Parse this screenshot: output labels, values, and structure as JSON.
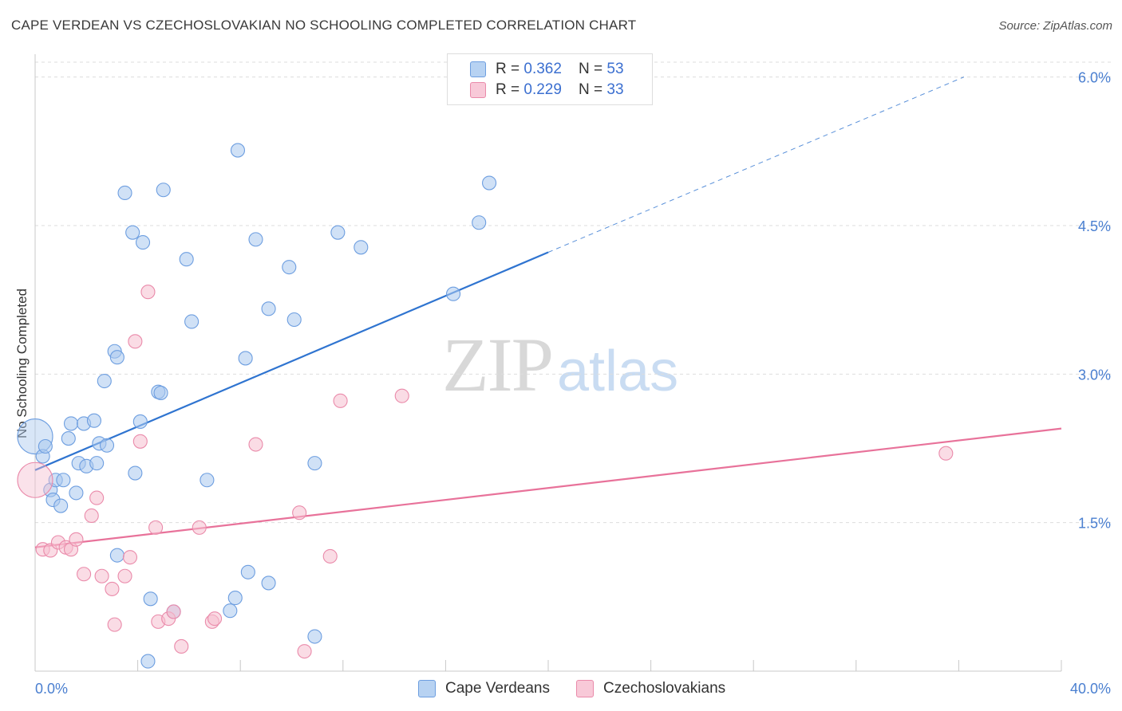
{
  "title": "CAPE VERDEAN VS CZECHOSLOVAKIAN NO SCHOOLING COMPLETED CORRELATION CHART",
  "source": "Source: ZipAtlas.com",
  "watermark": {
    "zip": "ZIP",
    "atlas": "atlas"
  },
  "legend": {
    "rows": [
      {
        "r_label": "R = ",
        "r_value": "0.362",
        "n_label": "N = ",
        "n_value": "53"
      },
      {
        "r_label": "R = ",
        "r_value": "0.229",
        "n_label": "N = ",
        "n_value": "33"
      }
    ]
  },
  "bottom_legend": [
    "Cape Verdeans",
    "Czechoslovakians"
  ],
  "colors": {
    "blue_fill": "#a9c8ee",
    "blue_stroke": "#6d9ee0",
    "blue_line": "#2f74d0",
    "pink_fill": "#f5bfd0",
    "pink_stroke": "#ea8aaa",
    "pink_line": "#e8729a",
    "tick_text": "#4a7fd0",
    "grid": "#dddddd"
  },
  "chart_data": {
    "type": "scatter",
    "title": "CAPE VERDEAN VS CZECHOSLOVAKIAN NO SCHOOLING COMPLETED CORRELATION CHART",
    "xlabel": "",
    "ylabel": "No Schooling Completed",
    "xlim": [
      0,
      40
    ],
    "ylim": [
      0,
      6.15
    ],
    "x_tick_labels": [
      "0.0%",
      "40.0%"
    ],
    "y_ticks": [
      1.5,
      3.0,
      4.5,
      6.0
    ],
    "y_tick_labels": [
      "1.5%",
      "3.0%",
      "4.5%",
      "6.0%"
    ],
    "grid": true,
    "legend_position": "top-center",
    "series": [
      {
        "name": "Cape Verdeans",
        "points": [
          {
            "x": 0.0,
            "y": 2.37,
            "big": true
          },
          {
            "x": 0.3,
            "y": 2.17
          },
          {
            "x": 0.4,
            "y": 2.27
          },
          {
            "x": 0.6,
            "y": 1.83
          },
          {
            "x": 0.7,
            "y": 1.73
          },
          {
            "x": 0.8,
            "y": 1.93
          },
          {
            "x": 1.0,
            "y": 1.67
          },
          {
            "x": 1.1,
            "y": 1.93
          },
          {
            "x": 1.3,
            "y": 2.35
          },
          {
            "x": 1.4,
            "y": 2.5
          },
          {
            "x": 1.6,
            "y": 1.8
          },
          {
            "x": 1.7,
            "y": 2.1
          },
          {
            "x": 1.9,
            "y": 2.5
          },
          {
            "x": 2.0,
            "y": 2.07
          },
          {
            "x": 2.3,
            "y": 2.53
          },
          {
            "x": 2.4,
            "y": 2.1
          },
          {
            "x": 2.5,
            "y": 2.3
          },
          {
            "x": 2.7,
            "y": 2.93
          },
          {
            "x": 2.8,
            "y": 2.28
          },
          {
            "x": 3.1,
            "y": 3.23
          },
          {
            "x": 3.2,
            "y": 3.17
          },
          {
            "x": 3.2,
            "y": 1.17
          },
          {
            "x": 3.5,
            "y": 4.83
          },
          {
            "x": 3.8,
            "y": 4.43
          },
          {
            "x": 3.9,
            "y": 2.0
          },
          {
            "x": 4.1,
            "y": 2.52
          },
          {
            "x": 4.2,
            "y": 4.33
          },
          {
            "x": 4.5,
            "y": 0.73
          },
          {
            "x": 4.4,
            "y": 0.1
          },
          {
            "x": 4.8,
            "y": 2.82
          },
          {
            "x": 4.9,
            "y": 2.81
          },
          {
            "x": 5.0,
            "y": 4.86
          },
          {
            "x": 5.4,
            "y": 0.6
          },
          {
            "x": 5.9,
            "y": 4.16
          },
          {
            "x": 6.1,
            "y": 3.53
          },
          {
            "x": 6.7,
            "y": 1.93
          },
          {
            "x": 7.6,
            "y": 0.61
          },
          {
            "x": 7.8,
            "y": 0.74
          },
          {
            "x": 7.9,
            "y": 5.26
          },
          {
            "x": 8.2,
            "y": 3.16
          },
          {
            "x": 8.3,
            "y": 1.0
          },
          {
            "x": 8.6,
            "y": 4.36
          },
          {
            "x": 9.1,
            "y": 0.89
          },
          {
            "x": 9.1,
            "y": 3.66
          },
          {
            "x": 9.9,
            "y": 4.08
          },
          {
            "x": 10.1,
            "y": 3.55
          },
          {
            "x": 10.9,
            "y": 0.35
          },
          {
            "x": 10.9,
            "y": 2.1
          },
          {
            "x": 11.8,
            "y": 4.43
          },
          {
            "x": 12.7,
            "y": 4.28
          },
          {
            "x": 16.3,
            "y": 3.81
          },
          {
            "x": 17.3,
            "y": 4.53
          },
          {
            "x": 17.7,
            "y": 4.93
          }
        ],
        "trend": {
          "x": [
            0,
            20
          ],
          "y": [
            2.03,
            4.23
          ],
          "dashed_to": {
            "x": 36.2,
            "y": 6.0
          }
        }
      },
      {
        "name": "Czechoslovakians",
        "points": [
          {
            "x": 0.0,
            "y": 1.93,
            "big": true
          },
          {
            "x": 0.3,
            "y": 1.23
          },
          {
            "x": 0.6,
            "y": 1.22
          },
          {
            "x": 0.9,
            "y": 1.3
          },
          {
            "x": 1.2,
            "y": 1.25
          },
          {
            "x": 1.4,
            "y": 1.23
          },
          {
            "x": 1.6,
            "y": 1.33
          },
          {
            "x": 1.9,
            "y": 0.98
          },
          {
            "x": 2.2,
            "y": 1.57
          },
          {
            "x": 2.4,
            "y": 1.75
          },
          {
            "x": 2.6,
            "y": 0.96
          },
          {
            "x": 3.0,
            "y": 0.83
          },
          {
            "x": 3.1,
            "y": 0.47
          },
          {
            "x": 3.5,
            "y": 0.96
          },
          {
            "x": 3.7,
            "y": 1.15
          },
          {
            "x": 3.9,
            "y": 3.33
          },
          {
            "x": 4.1,
            "y": 2.32
          },
          {
            "x": 4.4,
            "y": 3.83
          },
          {
            "x": 4.7,
            "y": 1.45
          },
          {
            "x": 4.8,
            "y": 0.5
          },
          {
            "x": 5.2,
            "y": 0.53
          },
          {
            "x": 5.4,
            "y": 0.6
          },
          {
            "x": 5.7,
            "y": 0.25
          },
          {
            "x": 6.4,
            "y": 1.45
          },
          {
            "x": 6.9,
            "y": 0.5
          },
          {
            "x": 7.0,
            "y": 0.53
          },
          {
            "x": 8.6,
            "y": 2.29
          },
          {
            "x": 10.3,
            "y": 1.6
          },
          {
            "x": 10.5,
            "y": 0.2
          },
          {
            "x": 11.5,
            "y": 1.16
          },
          {
            "x": 11.9,
            "y": 2.73
          },
          {
            "x": 14.3,
            "y": 2.78
          },
          {
            "x": 35.5,
            "y": 2.2
          }
        ],
        "trend": {
          "x": [
            0,
            40
          ],
          "y": [
            1.25,
            2.45
          ]
        }
      }
    ]
  }
}
